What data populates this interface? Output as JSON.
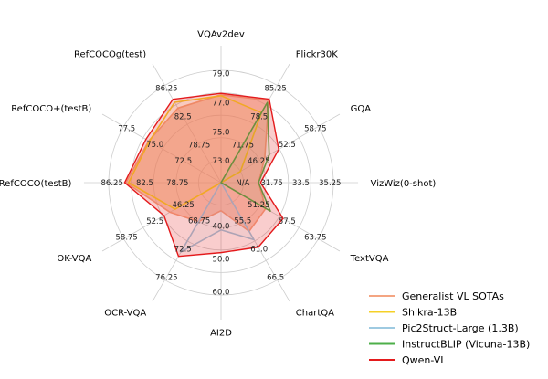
{
  "chart_data": {
    "type": "radar",
    "axes": [
      "VQAv2dev",
      "Flickr30K",
      "GQA",
      "VizWiz(0-shot)",
      "TextVQA",
      "ChartQA",
      "AI2D",
      "OCR-VQA",
      "OK-VQA",
      "RefCOCO(testB)",
      "RefCOCO+(testB)",
      "RefCOCOg(test)"
    ],
    "axis_ticks": [
      [
        "73.0",
        "75.0",
        "77.0",
        "79.0"
      ],
      [
        "71.75",
        "78.5",
        "85.25"
      ],
      [
        "46.25",
        "52.5",
        "58.75"
      ],
      [
        "N/A",
        "31.75",
        "33.5",
        "35.25"
      ],
      [
        "51.25",
        "57.5",
        "63.75"
      ],
      [
        "55.5",
        "61.0",
        "66.5"
      ],
      [
        "40.0",
        "50.0",
        "60.0"
      ],
      [
        "68.75",
        "72.5",
        "76.25"
      ],
      [
        "46.25",
        "52.5",
        "58.75"
      ],
      [
        "78.75",
        "82.5",
        "86.25"
      ],
      [
        "72.5",
        "75.0",
        "77.5"
      ],
      [
        "78.75",
        "82.5",
        "86.25"
      ]
    ],
    "series": [
      {
        "name": "Generalist VL SOTAs",
        "color": "#f4a582",
        "values": [
          78.2,
          84.6,
          45.0,
          33.4,
          46.0,
          50.0,
          25.0,
          40.0,
          52.6,
          84.7,
          74.3,
          76.7
        ]
      },
      {
        "name": "Shikra-13B",
        "color": "#f5d027",
        "values": [
          77.4,
          72.0,
          20.0,
          0.0,
          0.0,
          0.0,
          0.0,
          0.0,
          47.2,
          82.3,
          73.7,
          82.6
        ]
      },
      {
        "name": "Pic2Struct-Large (1.3B)",
        "color": "#9ecae1",
        "values": [
          0.0,
          0.0,
          0.0,
          0.0,
          0.0,
          58.6,
          42.1,
          71.3,
          0.0,
          0.0,
          0.0,
          0.0
        ]
      },
      {
        "name": "InstructBLIP (Vicuna-13B)",
        "color": "#4daf4a",
        "values": [
          0.0,
          82.4,
          49.5,
          33.4,
          50.7,
          0.0,
          0.0,
          0.0,
          0.0,
          0.0,
          0.0,
          0.0
        ]
      },
      {
        "name": "Qwen-VL",
        "color": "#e41a1c",
        "values": [
          79.5,
          85.8,
          59.3,
          35.2,
          63.8,
          66.3,
          62.3,
          75.7,
          58.6,
          85.8,
          77.2,
          85.7
        ]
      }
    ]
  }
}
